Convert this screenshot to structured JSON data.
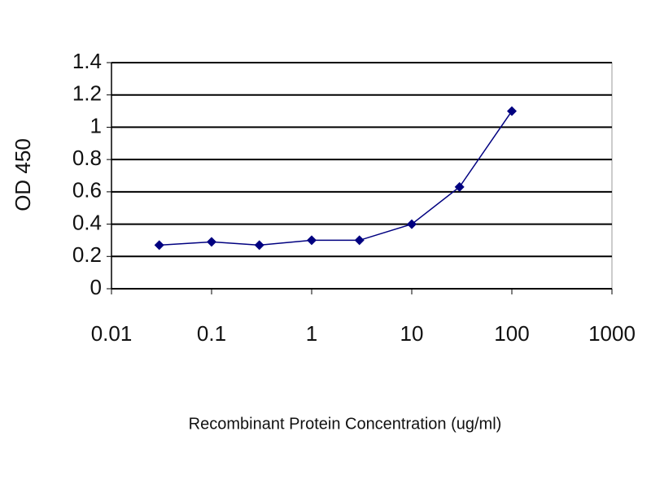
{
  "chart_data": {
    "type": "line",
    "x_label": "Recombinant Protein Concentration (ug/ml)",
    "y_label": "OD 450",
    "x": [
      0.03,
      0.1,
      0.3,
      1,
      3,
      10,
      30,
      100
    ],
    "series": [
      {
        "color": "#000080",
        "values": [
          0.27,
          0.29,
          0.27,
          0.3,
          0.3,
          0.4,
          0.63,
          1.1
        ]
      }
    ],
    "xlim": [
      0.01,
      1000
    ],
    "xticks": [
      0.01,
      0.1,
      1,
      10,
      100,
      1000
    ],
    "xscale": "log",
    "ylim": [
      0,
      1.4
    ],
    "yticks": [
      0,
      0.2,
      0.4,
      0.6,
      0.8,
      1,
      1.2,
      1.4
    ],
    "grid": true
  }
}
